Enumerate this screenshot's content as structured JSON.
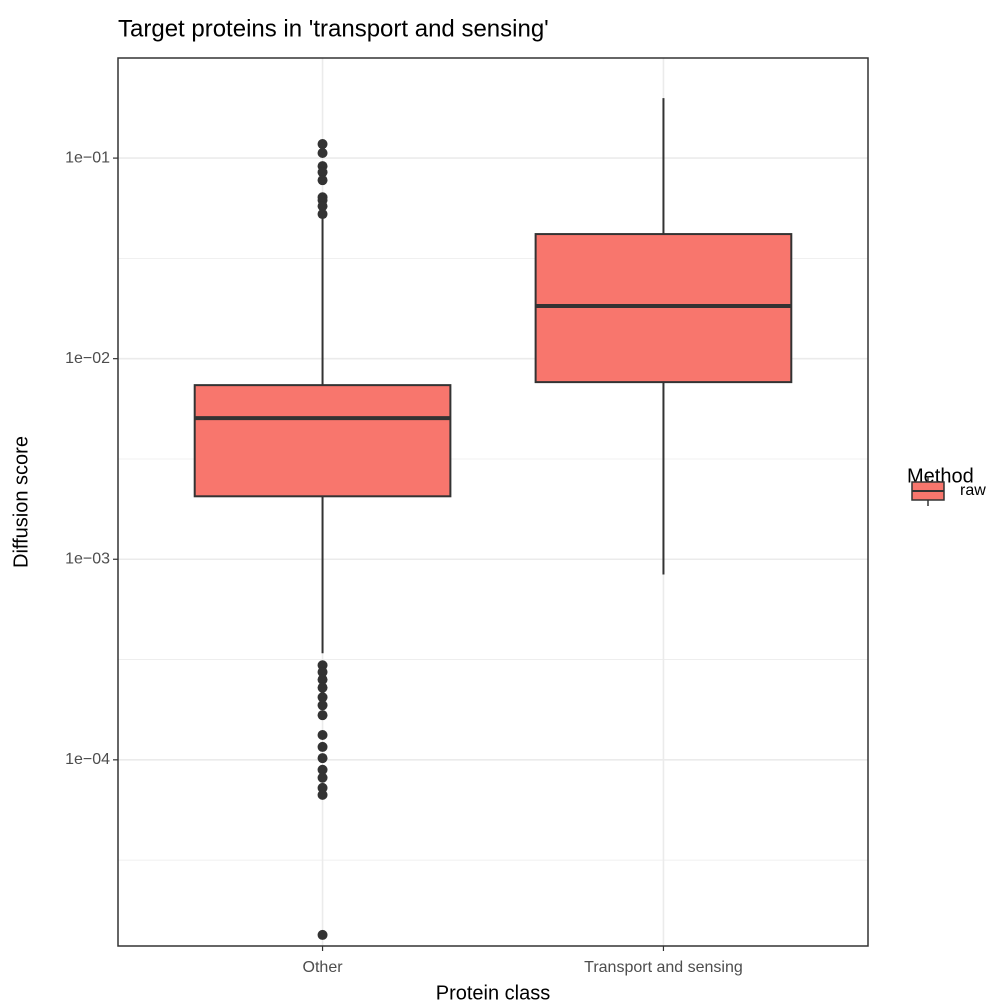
{
  "chart_data": {
    "type": "box",
    "title": "Target proteins in 'transport and sensing'",
    "x_label": "Protein class",
    "y_label": "Diffusion score",
    "categories": [
      "Other",
      "Transport and sensing"
    ],
    "log_scale_y": true,
    "grid": true,
    "ylim": [
      1.18e-05,
      0.3155
    ],
    "yticks": [
      {
        "value": 0.1,
        "label": "1e−01"
      },
      {
        "value": 0.01,
        "label": "1e−02"
      },
      {
        "value": 0.001,
        "label": "1e−03"
      },
      {
        "value": 0.0001,
        "label": "1e−04"
      }
    ],
    "legend_title": "Method",
    "legend_position": "right",
    "series": [
      {
        "name": "raw",
        "color": "#f8766d",
        "boxes": [
          {
            "min": 0.00034,
            "q1": 0.00206,
            "median": 0.00505,
            "q3": 0.00738,
            "max": 0.0508,
            "outliers": [
              0.1175,
              0.106,
              0.0912,
              0.085,
              0.0776,
              0.0638,
              0.0617,
              0.0576,
              0.0526,
              0.000296,
              0.000274,
              0.000251,
              0.000229,
              0.000205,
              0.000187,
              0.000167,
              0.000133,
              0.000116,
              0.000102,
              8.92e-05,
              8.14e-05,
              7.25e-05,
              6.69e-05,
              1.34e-05
            ]
          },
          {
            "min": 0.00084,
            "q1": 0.00764,
            "median": 0.0183,
            "q3": 0.0418,
            "max": 0.199,
            "outliers": []
          }
        ]
      }
    ]
  }
}
